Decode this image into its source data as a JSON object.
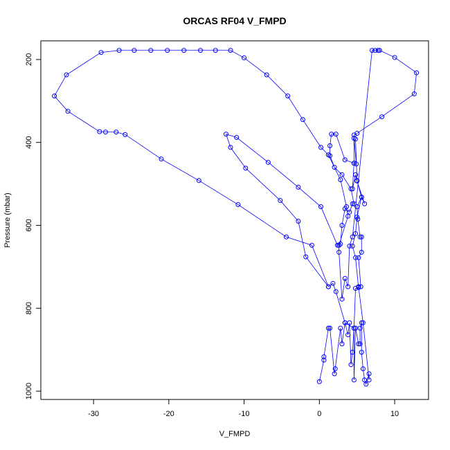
{
  "chart_data": {
    "type": "line",
    "title": "ORCAS RF04 V_FMPD",
    "xlabel": "V_FMPD",
    "ylabel": "Pressure (mbar)",
    "xlim": [
      -37,
      14.5
    ],
    "ylim": [
      1020,
      155
    ],
    "x_ticks": [
      -30,
      -20,
      -10,
      0,
      10
    ],
    "y_ticks": [
      200,
      400,
      600,
      800,
      1000
    ],
    "grid": false,
    "legend": "none",
    "colors": {
      "series": "#0000ff",
      "axis": "#000000",
      "background": "#ffffff"
    },
    "series": [
      {
        "points": [
          [
            0.0,
            977
          ],
          [
            0.6,
            925
          ],
          [
            0.6,
            917
          ],
          [
            1.2,
            848
          ],
          [
            1.4,
            848
          ],
          [
            2.0,
            958
          ],
          [
            2.1,
            946
          ],
          [
            2.8,
            848
          ],
          [
            3.0,
            886
          ],
          [
            3.4,
            835
          ],
          [
            3.8,
            864
          ],
          [
            4.0,
            835
          ],
          [
            4.2,
            936
          ],
          [
            4.4,
            906
          ],
          [
            4.6,
            848
          ],
          [
            4.6,
            973
          ],
          [
            4.8,
            848
          ],
          [
            5.2,
            886
          ],
          [
            5.4,
            886
          ],
          [
            5.4,
            848
          ],
          [
            5.6,
            835
          ],
          [
            5.6,
            906
          ],
          [
            5.8,
            946
          ],
          [
            6.0,
            973
          ],
          [
            6.2,
            983
          ],
          [
            6.6,
            958
          ],
          [
            6.6,
            973
          ],
          [
            5.8,
            835
          ],
          [
            5.2,
            748
          ],
          [
            5.5,
            748
          ],
          [
            5.2,
            678
          ],
          [
            5.6,
            665
          ],
          [
            5.6,
            628
          ],
          [
            5.4,
            628
          ],
          [
            5.1,
            585
          ],
          [
            5.0,
            555
          ],
          [
            5.6,
            532
          ],
          [
            6.0,
            548
          ],
          [
            5.0,
            493
          ],
          [
            4.8,
            478
          ],
          [
            4.4,
            512
          ],
          [
            4.6,
            450
          ],
          [
            4.6,
            382
          ],
          [
            5.0,
            378
          ],
          [
            8.3,
            338
          ],
          [
            12.6,
            283
          ],
          [
            12.9,
            232
          ],
          [
            10.0,
            195
          ],
          [
            8.0,
            178
          ],
          [
            7.8,
            178
          ],
          [
            7.4,
            178
          ],
          [
            7.0,
            178
          ],
          [
            4.4,
            628
          ],
          [
            4.0,
            650
          ],
          [
            3.8,
            748
          ],
          [
            3.4,
            728
          ],
          [
            3.0,
            778
          ],
          [
            2.6,
            665
          ],
          [
            2.6,
            648
          ],
          [
            2.8,
            645
          ],
          [
            3.0,
            600
          ],
          [
            3.4,
            560
          ],
          [
            4.0,
            568
          ],
          [
            4.4,
            548
          ],
          [
            4.6,
            548
          ],
          [
            4.2,
            512
          ],
          [
            3.0,
            478
          ],
          [
            2.0,
            460
          ],
          [
            1.4,
            432
          ],
          [
            1.4,
            408
          ],
          [
            1.6,
            380
          ],
          [
            2.2,
            380
          ],
          [
            3.4,
            442
          ],
          [
            4.6,
            450
          ],
          [
            4.9,
            452
          ],
          [
            4.6,
            390
          ],
          [
            4.8,
            392
          ],
          [
            5.0,
            492
          ],
          [
            5.6,
            532
          ],
          [
            5.0,
            580
          ],
          [
            4.8,
            620
          ],
          [
            4.4,
            650
          ],
          [
            4.8,
            678
          ],
          [
            5.2,
            750
          ],
          [
            4.8,
            752
          ],
          [
            4.6,
            848
          ],
          [
            3.4,
            835
          ],
          [
            2.2,
            760
          ],
          [
            1.8,
            740
          ],
          [
            1.2,
            748
          ],
          [
            -1.0,
            648
          ],
          [
            -4.4,
            628
          ],
          [
            -10.8,
            550
          ],
          [
            -16.0,
            492
          ],
          [
            -21.0,
            440
          ],
          [
            -25.8,
            381
          ],
          [
            -27.0,
            375
          ],
          [
            -28.4,
            375
          ],
          [
            -29.2,
            374
          ],
          [
            -33.4,
            325
          ],
          [
            -35.2,
            288
          ],
          [
            -33.6,
            237
          ],
          [
            -29.0,
            183
          ],
          [
            -26.6,
            178
          ],
          [
            -24.6,
            178
          ],
          [
            -22.4,
            178
          ],
          [
            -20.2,
            178
          ],
          [
            -18.0,
            178
          ],
          [
            -15.8,
            178
          ],
          [
            -13.8,
            178
          ],
          [
            -11.8,
            178
          ],
          [
            -10.0,
            196
          ],
          [
            -7.0,
            237
          ],
          [
            -4.2,
            288
          ],
          [
            -2.2,
            345
          ],
          [
            0.2,
            412
          ],
          [
            1.2,
            430
          ],
          [
            2.8,
            490
          ],
          [
            3.6,
            555
          ],
          [
            3.8,
            578
          ],
          [
            2.6,
            648
          ],
          [
            2.4,
            648
          ],
          [
            0.2,
            555
          ],
          [
            -2.8,
            508
          ],
          [
            -6.8,
            448
          ],
          [
            -11.0,
            388
          ],
          [
            -12.4,
            380
          ],
          [
            -11.8,
            412
          ],
          [
            -9.8,
            462
          ],
          [
            -5.2,
            540
          ],
          [
            -2.8,
            590
          ],
          [
            -1.8,
            676
          ],
          [
            1.2,
            748
          ]
        ]
      }
    ]
  }
}
